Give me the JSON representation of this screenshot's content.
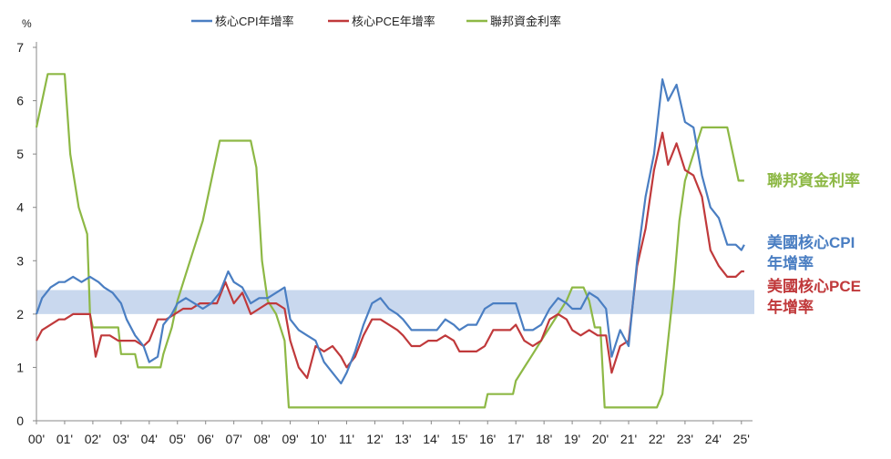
{
  "chart_data": {
    "type": "line",
    "y_unit": "%",
    "ylim": [
      0,
      7
    ],
    "yticks": [
      0,
      1,
      2,
      3,
      4,
      5,
      6,
      7
    ],
    "xlim": [
      2000.0,
      2025.2
    ],
    "x_tick_labels": [
      "00'",
      "01'",
      "02'",
      "03'",
      "04'",
      "05'",
      "06'",
      "07'",
      "08'",
      "09'",
      "10'",
      "11'",
      "12'",
      "13'",
      "14'",
      "15'",
      "16'",
      "17'",
      "18'",
      "19'",
      "20'",
      "21'",
      "22'",
      "23'",
      "24'",
      "25'"
    ],
    "band": {
      "from": 2.0,
      "to": 2.45
    },
    "legend": [
      "核心CPI年增率",
      "核心PCE年增率",
      "聯邦資金利率"
    ],
    "series": [
      {
        "name": "核心CPI年增率",
        "color": "#4A7EC2",
        "points": [
          [
            2000.0,
            2.0
          ],
          [
            2000.2,
            2.3
          ],
          [
            2000.5,
            2.5
          ],
          [
            2000.8,
            2.6
          ],
          [
            2001.0,
            2.6
          ],
          [
            2001.3,
            2.7
          ],
          [
            2001.6,
            2.6
          ],
          [
            2001.9,
            2.7
          ],
          [
            2002.2,
            2.6
          ],
          [
            2002.4,
            2.5
          ],
          [
            2002.7,
            2.4
          ],
          [
            2003.0,
            2.2
          ],
          [
            2003.2,
            1.9
          ],
          [
            2003.5,
            1.6
          ],
          [
            2003.8,
            1.4
          ],
          [
            2004.0,
            1.1
          ],
          [
            2004.3,
            1.2
          ],
          [
            2004.5,
            1.8
          ],
          [
            2004.8,
            2.0
          ],
          [
            2005.0,
            2.2
          ],
          [
            2005.3,
            2.3
          ],
          [
            2005.6,
            2.2
          ],
          [
            2005.9,
            2.1
          ],
          [
            2006.2,
            2.2
          ],
          [
            2006.5,
            2.4
          ],
          [
            2006.8,
            2.8
          ],
          [
            2007.0,
            2.6
          ],
          [
            2007.3,
            2.5
          ],
          [
            2007.6,
            2.2
          ],
          [
            2007.9,
            2.3
          ],
          [
            2008.2,
            2.3
          ],
          [
            2008.5,
            2.4
          ],
          [
            2008.8,
            2.5
          ],
          [
            2009.0,
            1.9
          ],
          [
            2009.3,
            1.7
          ],
          [
            2009.6,
            1.6
          ],
          [
            2009.9,
            1.5
          ],
          [
            2010.2,
            1.1
          ],
          [
            2010.5,
            0.9
          ],
          [
            2010.8,
            0.7
          ],
          [
            2011.0,
            0.9
          ],
          [
            2011.3,
            1.3
          ],
          [
            2011.6,
            1.8
          ],
          [
            2011.9,
            2.2
          ],
          [
            2012.2,
            2.3
          ],
          [
            2012.5,
            2.1
          ],
          [
            2012.8,
            2.0
          ],
          [
            2013.0,
            1.9
          ],
          [
            2013.3,
            1.7
          ],
          [
            2013.6,
            1.7
          ],
          [
            2013.9,
            1.7
          ],
          [
            2014.2,
            1.7
          ],
          [
            2014.5,
            1.9
          ],
          [
            2014.8,
            1.8
          ],
          [
            2015.0,
            1.7
          ],
          [
            2015.3,
            1.8
          ],
          [
            2015.6,
            1.8
          ],
          [
            2015.9,
            2.1
          ],
          [
            2016.2,
            2.2
          ],
          [
            2016.5,
            2.2
          ],
          [
            2016.8,
            2.2
          ],
          [
            2017.0,
            2.2
          ],
          [
            2017.3,
            1.7
          ],
          [
            2017.6,
            1.7
          ],
          [
            2017.9,
            1.8
          ],
          [
            2018.2,
            2.1
          ],
          [
            2018.5,
            2.3
          ],
          [
            2018.8,
            2.2
          ],
          [
            2019.0,
            2.1
          ],
          [
            2019.3,
            2.1
          ],
          [
            2019.6,
            2.4
          ],
          [
            2019.9,
            2.3
          ],
          [
            2020.2,
            2.1
          ],
          [
            2020.4,
            1.2
          ],
          [
            2020.7,
            1.7
          ],
          [
            2021.0,
            1.4
          ],
          [
            2021.3,
            3.0
          ],
          [
            2021.6,
            4.2
          ],
          [
            2021.9,
            5.0
          ],
          [
            2022.2,
            6.4
          ],
          [
            2022.4,
            6.0
          ],
          [
            2022.7,
            6.3
          ],
          [
            2023.0,
            5.6
          ],
          [
            2023.3,
            5.5
          ],
          [
            2023.6,
            4.6
          ],
          [
            2023.9,
            4.0
          ],
          [
            2024.2,
            3.8
          ],
          [
            2024.5,
            3.3
          ],
          [
            2024.8,
            3.3
          ],
          [
            2025.0,
            3.2
          ],
          [
            2025.1,
            3.3
          ]
        ]
      },
      {
        "name": "核心PCE年增率",
        "color": "#C0393B",
        "points": [
          [
            2000.0,
            1.5
          ],
          [
            2000.2,
            1.7
          ],
          [
            2000.5,
            1.8
          ],
          [
            2000.8,
            1.9
          ],
          [
            2001.0,
            1.9
          ],
          [
            2001.3,
            2.0
          ],
          [
            2001.6,
            2.0
          ],
          [
            2001.9,
            2.0
          ],
          [
            2002.1,
            1.2
          ],
          [
            2002.3,
            1.6
          ],
          [
            2002.6,
            1.6
          ],
          [
            2002.9,
            1.5
          ],
          [
            2003.2,
            1.5
          ],
          [
            2003.5,
            1.5
          ],
          [
            2003.8,
            1.4
          ],
          [
            2004.0,
            1.5
          ],
          [
            2004.3,
            1.9
          ],
          [
            2004.6,
            1.9
          ],
          [
            2004.9,
            2.0
          ],
          [
            2005.2,
            2.1
          ],
          [
            2005.5,
            2.1
          ],
          [
            2005.8,
            2.2
          ],
          [
            2006.1,
            2.2
          ],
          [
            2006.4,
            2.2
          ],
          [
            2006.7,
            2.6
          ],
          [
            2007.0,
            2.2
          ],
          [
            2007.3,
            2.4
          ],
          [
            2007.6,
            2.0
          ],
          [
            2007.9,
            2.1
          ],
          [
            2008.2,
            2.2
          ],
          [
            2008.5,
            2.2
          ],
          [
            2008.8,
            2.1
          ],
          [
            2009.0,
            1.5
          ],
          [
            2009.3,
            1.0
          ],
          [
            2009.6,
            0.8
          ],
          [
            2009.9,
            1.4
          ],
          [
            2010.2,
            1.3
          ],
          [
            2010.5,
            1.4
          ],
          [
            2010.8,
            1.2
          ],
          [
            2011.0,
            1.0
          ],
          [
            2011.3,
            1.2
          ],
          [
            2011.6,
            1.6
          ],
          [
            2011.9,
            1.9
          ],
          [
            2012.2,
            1.9
          ],
          [
            2012.5,
            1.8
          ],
          [
            2012.8,
            1.7
          ],
          [
            2013.0,
            1.6
          ],
          [
            2013.3,
            1.4
          ],
          [
            2013.6,
            1.4
          ],
          [
            2013.9,
            1.5
          ],
          [
            2014.2,
            1.5
          ],
          [
            2014.5,
            1.6
          ],
          [
            2014.8,
            1.5
          ],
          [
            2015.0,
            1.3
          ],
          [
            2015.3,
            1.3
          ],
          [
            2015.6,
            1.3
          ],
          [
            2015.9,
            1.4
          ],
          [
            2016.2,
            1.7
          ],
          [
            2016.5,
            1.7
          ],
          [
            2016.8,
            1.7
          ],
          [
            2017.0,
            1.8
          ],
          [
            2017.3,
            1.5
          ],
          [
            2017.6,
            1.4
          ],
          [
            2017.9,
            1.5
          ],
          [
            2018.2,
            1.9
          ],
          [
            2018.5,
            2.0
          ],
          [
            2018.8,
            1.9
          ],
          [
            2019.0,
            1.7
          ],
          [
            2019.3,
            1.6
          ],
          [
            2019.6,
            1.7
          ],
          [
            2019.9,
            1.6
          ],
          [
            2020.2,
            1.6
          ],
          [
            2020.4,
            0.9
          ],
          [
            2020.7,
            1.4
          ],
          [
            2021.0,
            1.5
          ],
          [
            2021.3,
            2.9
          ],
          [
            2021.6,
            3.6
          ],
          [
            2021.9,
            4.7
          ],
          [
            2022.2,
            5.4
          ],
          [
            2022.4,
            4.8
          ],
          [
            2022.7,
            5.2
          ],
          [
            2023.0,
            4.7
          ],
          [
            2023.3,
            4.6
          ],
          [
            2023.6,
            4.2
          ],
          [
            2023.9,
            3.2
          ],
          [
            2024.2,
            2.9
          ],
          [
            2024.5,
            2.7
          ],
          [
            2024.8,
            2.7
          ],
          [
            2025.0,
            2.8
          ],
          [
            2025.1,
            2.8
          ]
        ]
      },
      {
        "name": "聯邦資金利率",
        "color": "#8DB845",
        "points": [
          [
            2000.0,
            5.5
          ],
          [
            2000.2,
            6.0
          ],
          [
            2000.4,
            6.5
          ],
          [
            2000.8,
            6.5
          ],
          [
            2001.0,
            6.5
          ],
          [
            2001.2,
            5.0
          ],
          [
            2001.5,
            4.0
          ],
          [
            2001.8,
            3.5
          ],
          [
            2001.9,
            2.0
          ],
          [
            2002.0,
            1.75
          ],
          [
            2002.5,
            1.75
          ],
          [
            2002.9,
            1.75
          ],
          [
            2003.0,
            1.25
          ],
          [
            2003.5,
            1.25
          ],
          [
            2003.6,
            1.0
          ],
          [
            2004.0,
            1.0
          ],
          [
            2004.4,
            1.0
          ],
          [
            2004.5,
            1.25
          ],
          [
            2004.8,
            1.75
          ],
          [
            2005.0,
            2.25
          ],
          [
            2005.3,
            2.75
          ],
          [
            2005.6,
            3.25
          ],
          [
            2005.9,
            3.75
          ],
          [
            2006.2,
            4.5
          ],
          [
            2006.5,
            5.25
          ],
          [
            2006.8,
            5.25
          ],
          [
            2007.0,
            5.25
          ],
          [
            2007.3,
            5.25
          ],
          [
            2007.6,
            5.25
          ],
          [
            2007.8,
            4.75
          ],
          [
            2008.0,
            3.0
          ],
          [
            2008.2,
            2.25
          ],
          [
            2008.5,
            2.0
          ],
          [
            2008.8,
            1.5
          ],
          [
            2008.95,
            0.25
          ],
          [
            2009.0,
            0.25
          ],
          [
            2010.0,
            0.25
          ],
          [
            2011.0,
            0.25
          ],
          [
            2012.0,
            0.25
          ],
          [
            2013.0,
            0.25
          ],
          [
            2014.0,
            0.25
          ],
          [
            2015.0,
            0.25
          ],
          [
            2015.9,
            0.25
          ],
          [
            2016.0,
            0.5
          ],
          [
            2016.5,
            0.5
          ],
          [
            2016.9,
            0.5
          ],
          [
            2017.0,
            0.75
          ],
          [
            2017.3,
            1.0
          ],
          [
            2017.6,
            1.25
          ],
          [
            2017.9,
            1.5
          ],
          [
            2018.2,
            1.75
          ],
          [
            2018.5,
            2.0
          ],
          [
            2018.8,
            2.25
          ],
          [
            2019.0,
            2.5
          ],
          [
            2019.4,
            2.5
          ],
          [
            2019.6,
            2.25
          ],
          [
            2019.8,
            1.75
          ],
          [
            2020.0,
            1.75
          ],
          [
            2020.15,
            0.25
          ],
          [
            2020.5,
            0.25
          ],
          [
            2021.0,
            0.25
          ],
          [
            2021.5,
            0.25
          ],
          [
            2022.0,
            0.25
          ],
          [
            2022.2,
            0.5
          ],
          [
            2022.4,
            1.5
          ],
          [
            2022.6,
            2.5
          ],
          [
            2022.8,
            3.75
          ],
          [
            2023.0,
            4.5
          ],
          [
            2023.3,
            5.0
          ],
          [
            2023.6,
            5.5
          ],
          [
            2024.0,
            5.5
          ],
          [
            2024.5,
            5.5
          ],
          [
            2024.7,
            5.0
          ],
          [
            2024.9,
            4.5
          ],
          [
            2025.0,
            4.5
          ],
          [
            2025.1,
            4.5
          ]
        ]
      }
    ]
  },
  "side_labels": {
    "fed": "聯邦資金利率",
    "cpi_line1": "美國核心CPI",
    "cpi_line2": "年增率",
    "pce_line1": "美國核心PCE",
    "pce_line2": "年增率"
  },
  "colors": {
    "cpi": "#4A7EC2",
    "pce": "#C0393B",
    "fed": "#8DB845",
    "band": "#C9D8EE"
  }
}
